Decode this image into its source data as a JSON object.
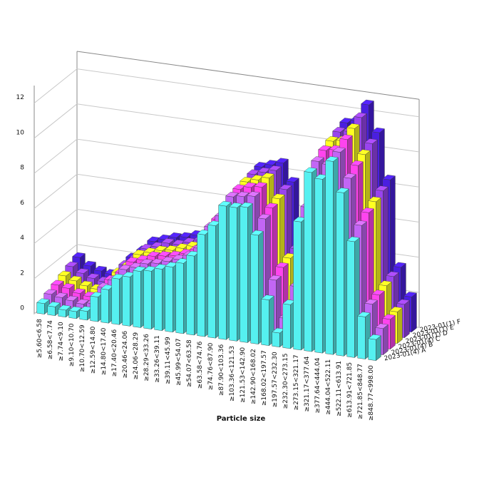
{
  "chart_data": {
    "type": "bar3d",
    "xlabel": "Particle size",
    "categories": [
      "≥5.60<6.58",
      "≥6.58<7.74",
      "≥7.74<9.10",
      "≥9.10<10.70",
      "≥10.70<12.59",
      "≥12.59<14.80",
      "≥14.80<17.40",
      "≥17.40<20.46",
      "≥20.46<24.06",
      "≥24.06<28.29",
      "≥28.29<33.26",
      "≥33.26<39.11",
      "≥39.11<45.99",
      "≥45.99<54.07",
      "≥54.07<63.58",
      "≥63.58<74.76",
      "≥74.76<87.90",
      "≥87.90<103.36",
      "≥103.36<121.53",
      "≥121.53<142.90",
      "≥142.90<168.02",
      "≥168.02<197.57",
      "≥197.57<232.30",
      "≥232.30<273.15",
      "≥273.15<321.17",
      "≥321.17<377.64",
      "≥377.64<444.04",
      "≥444.04<522.11",
      "≥522.11<613.91",
      "≥613.91<721.85",
      "≥721.85<848.77",
      "≥848.77<998.00"
    ],
    "series": [
      {
        "name": "2023-01(4) A",
        "color": "#55f0f0",
        "values": [
          0.6,
          0.5,
          0.4,
          0.4,
          0.5,
          1.4,
          1.9,
          2.6,
          2.8,
          3.2,
          3.3,
          3.5,
          3.7,
          4.0,
          4.5,
          5.8,
          6.4,
          7.6,
          7.6,
          7.7,
          6.2,
          2.6,
          0.8,
          2.5,
          7.3,
          10.2,
          9.9,
          11.0,
          9.3,
          6.6,
          2.4,
          1.2
        ]
      },
      {
        "name": "2023-01(4) B",
        "color": "#c266f5",
        "values": [
          0.8,
          0.7,
          0.6,
          0.5,
          0.6,
          1.6,
          2.1,
          2.8,
          3.0,
          3.3,
          3.4,
          3.6,
          3.8,
          4.1,
          4.6,
          5.9,
          6.6,
          7.8,
          7.9,
          8.0,
          6.8,
          3.4,
          1.3,
          3.2,
          7.8,
          10.5,
          10.4,
          11.2,
          9.8,
          7.2,
          2.8,
          1.5
        ]
      },
      {
        "name": "2023-01(4) C",
        "color": "#ff44ee",
        "values": [
          1.0,
          0.9,
          0.7,
          0.6,
          0.7,
          1.7,
          2.2,
          2.9,
          3.1,
          3.4,
          3.5,
          3.6,
          3.8,
          4.1,
          4.7,
          6.0,
          6.7,
          7.9,
          8.1,
          8.2,
          7.1,
          3.8,
          1.6,
          3.5,
          8.1,
          10.8,
          10.9,
          11.6,
          10.2,
          7.6,
          3.0,
          1.7
        ]
      },
      {
        "name": "2023-01(1) D",
        "color": "#ffff22",
        "values": [
          1.2,
          1.0,
          0.8,
          0.7,
          0.7,
          1.8,
          2.3,
          3.0,
          3.2,
          3.4,
          3.5,
          3.7,
          3.9,
          4.2,
          4.7,
          6.0,
          6.8,
          8.0,
          8.2,
          8.4,
          7.3,
          4.0,
          1.8,
          3.7,
          8.3,
          11.0,
          11.1,
          11.9,
          10.5,
          7.9,
          3.2,
          1.8
        ]
      },
      {
        "name": "2023-01(1) E",
        "color": "#9944ee",
        "values": [
          1.4,
          1.1,
          0.9,
          0.8,
          0.8,
          1.9,
          2.4,
          3.0,
          3.2,
          3.5,
          3.5,
          3.7,
          3.9,
          4.2,
          4.8,
          6.1,
          6.8,
          8.1,
          8.3,
          8.5,
          7.5,
          4.2,
          2.0,
          3.9,
          8.5,
          11.2,
          11.3,
          12.2,
          10.8,
          8.2,
          3.4,
          1.9
        ]
      },
      {
        "name": "2023-01(1) F",
        "color": "#4a1fe0",
        "values": [
          1.6,
          1.2,
          1.0,
          0.9,
          0.9,
          2.0,
          2.5,
          3.1,
          3.3,
          3.5,
          3.6,
          3.8,
          4.0,
          4.3,
          4.8,
          6.2,
          6.9,
          8.2,
          8.4,
          8.6,
          7.6,
          4.4,
          2.2,
          4.1,
          8.7,
          11.4,
          11.6,
          12.6,
          11.1,
          8.5,
          3.6,
          2.0
        ]
      }
    ],
    "ylim": [
      0,
      13
    ],
    "yticks": [
      0,
      2,
      4,
      6,
      8,
      10,
      12
    ],
    "grid": true
  }
}
